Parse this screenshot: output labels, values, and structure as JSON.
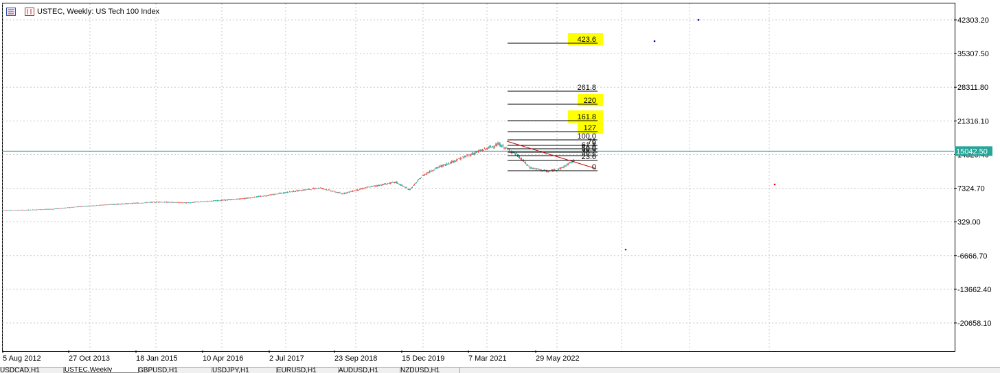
{
  "window": {
    "title": "USTEC, Weekly:  US Tech 100 Index"
  },
  "colors": {
    "bull": "#26a69a",
    "bear": "#ef5350",
    "price_line": "#008b8b",
    "price_tag_bg": "#26a69a",
    "highlight": "#ffff00",
    "trendline": "#cc0000",
    "grid": "#c8c8c8"
  },
  "chart_data": {
    "type": "candlestick",
    "symbol": "USTEC",
    "timeframe": "Weekly",
    "instrument": "US Tech 100 Index",
    "y_ticks": [
      "42303.20",
      "35307.50",
      "28311.80",
      "21316.10",
      "14320.40",
      "7324.70",
      "329.00",
      "-6666.70",
      "-13662.40",
      "-20658.10"
    ],
    "x_ticks": [
      "5 Aug 2012",
      "27 Oct 2013",
      "18 Jan 2015",
      "10 Apr 2016",
      "2 Jul 2017",
      "23 Sep 2018",
      "15 Dec 2019",
      "7 Mar 2021",
      "29 May 2022"
    ],
    "current_price": "15042.50",
    "series": [
      {
        "x": [
          "2012-08",
          "2013-01",
          "2013-07",
          "2014-01",
          "2014-07",
          "2015-01",
          "2015-07",
          "2016-01",
          "2016-07",
          "2017-01",
          "2017-07",
          "2018-01",
          "2018-07",
          "2018-12",
          "2019-06",
          "2019-12",
          "2020-03",
          "2020-06",
          "2020-09",
          "2021-01",
          "2021-06",
          "2021-11",
          "2022-03",
          "2022-06",
          "2022-10",
          "2023-01",
          "2023-04"
        ],
        "values": [
          2750,
          2800,
          3000,
          3500,
          3900,
          4200,
          4500,
          4300,
          4700,
          5100,
          5800,
          6700,
          7400,
          6200,
          7600,
          8600,
          7000,
          10000,
          11500,
          13000,
          14800,
          16500,
          14300,
          11600,
          10800,
          11500,
          13200
        ]
      }
    ],
    "fibonacci_levels": [
      "423.6",
      "261.8",
      "220",
      "161.8",
      "127",
      "100.0",
      "76",
      "61.8",
      "50.0",
      "38.2",
      "23.6",
      "0"
    ],
    "highlighted_levels": [
      "423.6",
      "220",
      "161.8",
      "127"
    ]
  },
  "tabs": [
    "USDCAD,H1",
    "USTEC,Weekly",
    "GBPUSD,H1",
    "USDJPY,H1",
    "EURUSD,H1",
    "AUDUSD,H1",
    "NZDUSD,H1"
  ],
  "active_tab": 1
}
